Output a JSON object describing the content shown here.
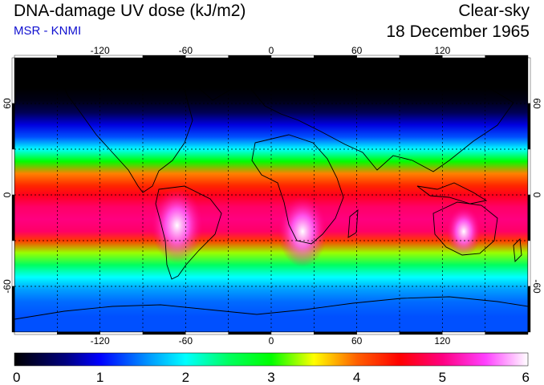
{
  "header": {
    "title": "DNA-damage UV dose (kJ/m2)",
    "source": "MSR - KNMI",
    "condition": "Clear-sky",
    "date": "18 December 1965"
  },
  "map": {
    "lon_range": [
      -180,
      180
    ],
    "lat_range": [
      -90,
      90
    ],
    "lon_ticks": [
      -120,
      -60,
      0,
      60,
      120
    ],
    "lon_labels": [
      "-120",
      "-60",
      "0",
      "60",
      "120"
    ],
    "lat_ticks": [
      60,
      0,
      -60
    ],
    "lat_labels": [
      "60",
      "0",
      "-60"
    ],
    "grid_lon_step": 30,
    "grid_lat_step": 30,
    "coastlines": true,
    "graticule_style": "dashed"
  },
  "colorbar": {
    "min": 0,
    "max": 6,
    "tick_values": [
      0,
      1,
      2,
      3,
      4,
      5,
      6
    ],
    "tick_labels": [
      "0",
      "1",
      "2",
      "3",
      "4",
      "5",
      "6"
    ],
    "stops": [
      {
        "value": 0.0,
        "color": "#000000"
      },
      {
        "value": 0.6,
        "color": "#000080"
      },
      {
        "value": 1.0,
        "color": "#0000ff"
      },
      {
        "value": 1.6,
        "color": "#00a0ff"
      },
      {
        "value": 2.0,
        "color": "#00ffff"
      },
      {
        "value": 2.5,
        "color": "#00ff60"
      },
      {
        "value": 3.0,
        "color": "#00ff00"
      },
      {
        "value": 3.5,
        "color": "#ffff00"
      },
      {
        "value": 4.0,
        "color": "#ff6000"
      },
      {
        "value": 4.5,
        "color": "#ff0000"
      },
      {
        "value": 5.0,
        "color": "#ff0080"
      },
      {
        "value": 5.5,
        "color": "#ff40ff"
      },
      {
        "value": 6.0,
        "color": "#ffffff"
      }
    ]
  },
  "zonal_profile": [
    {
      "lat": 90,
      "value": 0.0
    },
    {
      "lat": 70,
      "value": 0.0
    },
    {
      "lat": 62,
      "value": 0.1
    },
    {
      "lat": 54,
      "value": 0.4
    },
    {
      "lat": 46,
      "value": 0.9
    },
    {
      "lat": 38,
      "value": 1.3
    },
    {
      "lat": 30,
      "value": 2.0
    },
    {
      "lat": 22,
      "value": 3.0
    },
    {
      "lat": 14,
      "value": 3.9
    },
    {
      "lat": 6,
      "value": 4.3
    },
    {
      "lat": 0,
      "value": 4.6
    },
    {
      "lat": -8,
      "value": 4.9
    },
    {
      "lat": -16,
      "value": 5.0
    },
    {
      "lat": -24,
      "value": 4.9
    },
    {
      "lat": -30,
      "value": 4.2
    },
    {
      "lat": -38,
      "value": 3.3
    },
    {
      "lat": -46,
      "value": 2.5
    },
    {
      "lat": -54,
      "value": 2.0
    },
    {
      "lat": -62,
      "value": 1.6
    },
    {
      "lat": -70,
      "value": 1.4
    },
    {
      "lat": -80,
      "value": 1.3
    },
    {
      "lat": -90,
      "value": 1.3
    }
  ],
  "hotspots": [
    {
      "region": "Andes / South America",
      "lon": -66,
      "lat": -20,
      "value": 5.9
    },
    {
      "region": "Southern Africa",
      "lon": 22,
      "lat": -24,
      "value": 5.8
    },
    {
      "region": "Australia",
      "lon": 135,
      "lat": -24,
      "value": 5.3
    }
  ]
}
